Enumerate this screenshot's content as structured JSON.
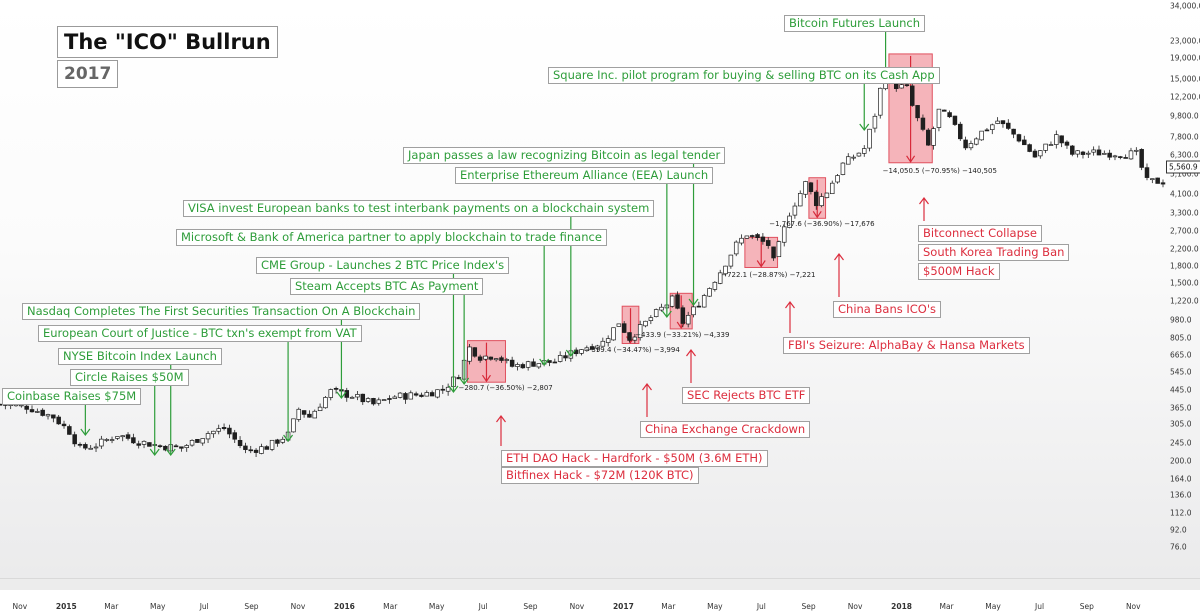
{
  "header": {
    "title": "The \"ICO\" Bullrun",
    "subtitle": "2017"
  },
  "chart_data": {
    "type": "candlestick",
    "scale": "log",
    "ylim": [
      60,
      34000
    ],
    "y_ticks": [
      "34,000.0",
      "23,000.0",
      "19,000.0",
      "15,000.0",
      "12,200.0",
      "9,800.0",
      "7,800.0",
      "6,300.0",
      "5,100.0",
      "4,100.0",
      "3,300.0",
      "2,700.0",
      "2,200.0",
      "1,800.0",
      "1,500.0",
      "1,220.0",
      "980.0",
      "805.0",
      "665.0",
      "545.0",
      "445.0",
      "365.0",
      "305.0",
      "245.0",
      "200.0",
      "164.0",
      "136.0",
      "112.0",
      "92.0",
      "76.0"
    ],
    "x_ticks": [
      "Nov",
      "2015",
      "Mar",
      "May",
      "Jul",
      "Sep",
      "Nov",
      "2016",
      "Mar",
      "May",
      "Jul",
      "Sep",
      "Nov",
      "2017",
      "Mar",
      "May",
      "Jul",
      "Sep",
      "Nov",
      "2018",
      "Mar",
      "May",
      "Jul",
      "Sep",
      "Nov"
    ],
    "x_ticks_bold": [
      "2015",
      "2016",
      "2017",
      "2018"
    ],
    "last_price": "5,560.9",
    "weekly_close_anchors": [
      [
        "2014-10-06",
        380
      ],
      [
        "2014-11-10",
        370
      ],
      [
        "2014-12-15",
        330
      ],
      [
        "2015-01-05",
        280
      ],
      [
        "2015-01-19",
        230
      ],
      [
        "2015-02-09",
        240
      ],
      [
        "2015-03-09",
        270
      ],
      [
        "2015-04-06",
        250
      ],
      [
        "2015-05-04",
        238
      ],
      [
        "2015-06-01",
        232
      ],
      [
        "2015-07-06",
        275
      ],
      [
        "2015-07-27",
        290
      ],
      [
        "2015-08-24",
        225
      ],
      [
        "2015-09-21",
        235
      ],
      [
        "2015-10-19",
        270
      ],
      [
        "2015-11-02",
        360
      ],
      [
        "2015-11-16",
        330
      ],
      [
        "2015-12-14",
        440
      ],
      [
        "2016-01-11",
        420
      ],
      [
        "2016-02-08",
        380
      ],
      [
        "2016-03-07",
        415
      ],
      [
        "2016-04-11",
        425
      ],
      [
        "2016-05-09",
        450
      ],
      [
        "2016-05-30",
        530
      ],
      [
        "2016-06-13",
        720
      ],
      [
        "2016-06-27",
        650
      ],
      [
        "2016-07-18",
        660
      ],
      [
        "2016-08-08",
        585
      ],
      [
        "2016-09-05",
        605
      ],
      [
        "2016-10-03",
        615
      ],
      [
        "2016-11-07",
        715
      ],
      [
        "2016-12-05",
        765
      ],
      [
        "2016-12-26",
        960
      ],
      [
        "2017-01-09",
        800
      ],
      [
        "2017-02-06",
        1010
      ],
      [
        "2017-03-06",
        1240
      ],
      [
        "2017-03-20",
        960
      ],
      [
        "2017-04-10",
        1190
      ],
      [
        "2017-05-08",
        1700
      ],
      [
        "2017-05-29",
        2300
      ],
      [
        "2017-06-12",
        2600
      ],
      [
        "2017-07-10",
        2300
      ],
      [
        "2017-07-17",
        1900
      ],
      [
        "2017-08-07",
        3300
      ],
      [
        "2017-08-28",
        4600
      ],
      [
        "2017-09-11",
        3700
      ],
      [
        "2017-09-25",
        4200
      ],
      [
        "2017-10-16",
        5700
      ],
      [
        "2017-11-13",
        6800
      ],
      [
        "2017-11-27",
        10000
      ],
      [
        "2017-12-11",
        17500
      ],
      [
        "2017-12-18",
        14000
      ],
      [
        "2018-01-08",
        13500
      ],
      [
        "2018-01-15",
        11000
      ],
      [
        "2018-02-05",
        7000
      ],
      [
        "2018-02-19",
        10400
      ],
      [
        "2018-03-05",
        9500
      ],
      [
        "2018-03-26",
        7000
      ],
      [
        "2018-04-16",
        8200
      ],
      [
        "2018-05-07",
        9300
      ],
      [
        "2018-06-04",
        7600
      ],
      [
        "2018-06-25",
        6200
      ],
      [
        "2018-07-23",
        7800
      ],
      [
        "2018-08-13",
        6400
      ],
      [
        "2018-09-10",
        6500
      ],
      [
        "2018-10-08",
        6450
      ],
      [
        "2018-11-05",
        6400
      ],
      [
        "2018-11-19",
        4700
      ]
    ],
    "drawdowns": [
      {
        "label": "−280.7 (−36.50%) −2,807",
        "from_date": "2016-06-13",
        "to_date": "2016-07-25",
        "high": 780,
        "low": 488
      },
      {
        "label": "−399.4 (−34.47%) −3,994",
        "from_date": "2017-01-02",
        "to_date": "2017-01-16",
        "high": 1150,
        "low": 755
      },
      {
        "label": "−433.9 (−33.21%) −4,339",
        "from_date": "2017-03-06",
        "to_date": "2017-03-27",
        "high": 1330,
        "low": 890
      },
      {
        "label": "−722.1 (−28.87%) −7,221",
        "from_date": "2017-06-12",
        "to_date": "2017-07-17",
        "high": 2500,
        "low": 1780
      },
      {
        "label": "−1,767.6 (−36.90%) −17,676",
        "from_date": "2017-09-04",
        "to_date": "2017-09-18",
        "high": 4900,
        "low": 3100
      },
      {
        "label": "−14,050.5 (−70.95%) −140,505",
        "from_date": "2017-12-18",
        "to_date": "2018-02-05",
        "high": 19800,
        "low": 5800
      }
    ],
    "events_bullish": [
      {
        "label": "Coinbase Raises $75M",
        "date": "2015-01-26"
      },
      {
        "label": "Circle Raises $50M",
        "date": "2015-04-27"
      },
      {
        "label": "NYSE Bitcoin Index Launch",
        "date": "2015-05-18"
      },
      {
        "label": "European Court of Justice - BTC txn's exempt from VAT",
        "date": "2015-10-19"
      },
      {
        "label": "Nasdaq Completes The First Securities Transaction On A Blockchain",
        "date": "2015-12-28"
      },
      {
        "label": "CME Group - Launches 2 BTC Price Index's",
        "date": "2016-05-23"
      },
      {
        "label": "Steam Accepts BTC As Payment",
        "date": "2016-06-06"
      },
      {
        "label": "Microsoft & Bank of America partner to apply blockchain to trade finance",
        "date": "2016-09-19"
      },
      {
        "label": "VISA invest European banks to test interbank payments on a blockchain system",
        "date": "2016-10-24"
      },
      {
        "label": "Enterprise Ethereum Alliance (EEA) Launch",
        "date": "2017-02-27"
      },
      {
        "label": "Japan passes a law recognizing Bitcoin as legal tender",
        "date": "2017-04-03"
      },
      {
        "label": "Square Inc. pilot program for buying & selling BTC on its Cash App",
        "date": "2017-11-13"
      },
      {
        "label": "Bitcoin Futures Launch",
        "date": "2017-12-11"
      }
    ],
    "events_bearish": [
      {
        "label": "ETH DAO Hack - Hardfork - $50M (3.6M ETH)",
        "date": "2016-06-20"
      },
      {
        "label": "Bitfinex Hack - $72M (120K BTC)",
        "date": "2016-08-01"
      },
      {
        "label": "China Exchange Crackdown",
        "date": "2017-01-09"
      },
      {
        "label": "SEC Rejects BTC ETF",
        "date": "2017-03-13"
      },
      {
        "label": "FBI's Seizure: AlphaBay & Hansa Markets",
        "date": "2017-07-17"
      },
      {
        "label": "China Bans ICO's",
        "date": "2017-09-11"
      },
      {
        "label": "Bitconnect Collapse",
        "date": "2018-01-15"
      },
      {
        "label": "South Korea Trading Ban",
        "date": "2018-01-22"
      },
      {
        "label": "$500M Hack",
        "date": "2018-01-29"
      }
    ],
    "colors": {
      "up": "#ffffff",
      "down": "#1f1f1f",
      "bullish": "#2e9d3a",
      "bearish": "#dc2e3e",
      "drawdown_fill": "#f3a7ae"
    }
  }
}
